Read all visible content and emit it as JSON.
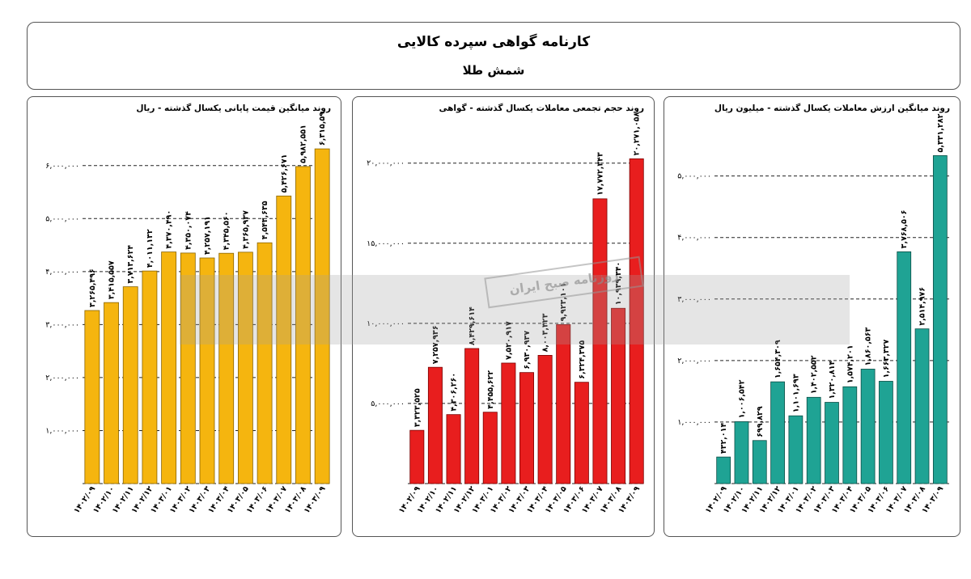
{
  "header": {
    "title": "کارنامه گواهی سپرده کالایی",
    "subtitle": "شمش طلا"
  },
  "watermark": "روزنامه صبح ایران",
  "chart_data": [
    {
      "type": "bar",
      "title": "روند میانگین قیمت پایانی یکسال گذشته - ریال",
      "categories": [
        "۱۴۰۲/۰۹",
        "۱۴۰۲/۱۰",
        "۱۴۰۲/۱۱",
        "۱۴۰۲/۱۲",
        "۱۴۰۳/۰۱",
        "۱۴۰۳/۰۲",
        "۱۴۰۳/۰۳",
        "۱۴۰۳/۰۴",
        "۱۴۰۳/۰۵",
        "۱۴۰۳/۰۶",
        "۱۴۰۳/۰۷",
        "۱۴۰۳/۰۸",
        "۱۴۰۳/۰۹"
      ],
      "values": [
        3265496,
        3415557,
        3713624,
        4011132,
        4370490,
        4350074,
        4257191,
        4345560,
        4365937,
        4543635,
        5426671,
        5982551,
        6315590
      ],
      "value_labels": [
        "۳,۲۶۵,۴۹۶",
        "۳,۴۱۵,۵۵۷",
        "۳,۷۱۳,۶۲۴",
        "۴,۰۱۱,۱۳۲",
        "۴,۳۷۰,۴۹۰",
        "۴,۳۵۰,۰۷۴",
        "۴,۲۵۷,۱۹۱",
        "۴,۳۴۵,۵۶۰",
        "۴,۳۶۵,۹۳۷",
        "۴,۵۴۳,۶۳۵",
        "۵,۴۲۶,۶۷۱",
        "۵,۹۸۲,۵۵۱",
        "۶,۳۱۵,۵۹۰"
      ],
      "ylim": [
        0,
        6500000
      ],
      "yticks": [
        1000000,
        2000000,
        3000000,
        4000000,
        5000000,
        6000000
      ],
      "ytick_labels": [
        "۱,۰۰۰,۰۰۰",
        "۲,۰۰۰,۰۰۰",
        "۳,۰۰۰,۰۰۰",
        "۴,۰۰۰,۰۰۰",
        "۵,۰۰۰,۰۰۰",
        "۶,۰۰۰,۰۰۰"
      ],
      "grid": true,
      "color": "#F5B50F",
      "stroke": "#8a6400"
    },
    {
      "type": "bar",
      "title": "روند حجم تجمعی معاملات یکسال گذشته - گواهی",
      "categories": [
        "۱۴۰۲/۰۹",
        "۱۴۰۲/۱۰",
        "۱۴۰۲/۱۱",
        "۱۴۰۲/۱۲",
        "۱۴۰۳/۰۱",
        "۱۴۰۳/۰۲",
        "۱۴۰۳/۰۳",
        "۱۴۰۳/۰۴",
        "۱۴۰۳/۰۵",
        "۱۴۰۳/۰۶",
        "۱۴۰۳/۰۷",
        "۱۴۰۳/۰۸",
        "۱۴۰۳/۰۹"
      ],
      "values": [
        3323525,
        7257936,
        4306260,
        8429614,
        4455622,
        7520917,
        6930937,
        8003323,
        9923101,
        6324375,
        17772343,
        10939340,
        20271058
      ],
      "value_labels": [
        "۳,۳۲۳,۵۲۵",
        "۷,۲۵۷,۹۳۶",
        "۴,۳۰۶,۲۶۰",
        "۸,۴۲۹,۶۱۴",
        "۴,۴۵۵,۶۲۲",
        "۷,۵۲۰,۹۱۷",
        "۶,۹۳۰,۹۳۷",
        "۸,۰۰۳,۳۲۳",
        "۹,۹۲۳,۱۰۱",
        "۶,۳۲۴,۳۷۵",
        "۱۷,۷۷۲,۳۴۳",
        "۱۰,۹۳۹,۳۴۰",
        "۲۰,۲۷۱,۰۵۸"
      ],
      "ylim": [
        0,
        21500000
      ],
      "yticks": [
        5000000,
        10000000,
        15000000,
        20000000
      ],
      "ytick_labels": [
        "۵,۰۰۰,۰۰۰",
        "۱۰,۰۰۰,۰۰۰",
        "۱۵,۰۰۰,۰۰۰",
        "۲۰,۰۰۰,۰۰۰"
      ],
      "grid": true,
      "color": "#E81E1E",
      "stroke": "#7a0000"
    },
    {
      "type": "bar",
      "title": "روند میانگین ارزش معاملات یکسال گذشته - میلیون ریال",
      "categories": [
        "۱۴۰۲/۰۹",
        "۱۴۰۲/۱۰",
        "۱۴۰۲/۱۱",
        "۱۴۰۲/۱۲",
        "۱۴۰۳/۰۱",
        "۱۴۰۳/۰۲",
        "۱۴۰۳/۰۳",
        "۱۴۰۳/۰۴",
        "۱۴۰۳/۰۵",
        "۱۴۰۳/۰۶",
        "۱۴۰۳/۰۷",
        "۱۴۰۳/۰۸",
        "۱۴۰۳/۰۹"
      ],
      "values": [
        432014,
        1006542,
        699829,
        1654309,
        1101693,
        1402552,
        1320814,
        1574201,
        1860563,
        1663327,
        3768506,
        2514976,
        5331282
      ],
      "value_labels": [
        "۴۳۲,۰۱۴",
        "۱,۰۰۶,۵۴۲",
        "۶۹۹,۸۲۹",
        "۱,۶۵۴,۳۰۹",
        "۱,۱۰۱,۶۹۳",
        "۱,۴۰۲,۵۵۲",
        "۱,۳۲۰,۸۱۴",
        "۱,۵۷۴,۲۰۱",
        "۱,۸۶۰,۵۶۳",
        "۱,۶۶۳,۳۲۷",
        "۳,۷۶۸,۵۰۶",
        "۲,۵۱۴,۹۷۶",
        "۵,۳۳۱,۲۸۲"
      ],
      "ylim": [
        0,
        5600000
      ],
      "yticks": [
        1000000,
        2000000,
        3000000,
        4000000,
        5000000
      ],
      "ytick_labels": [
        "۱,۰۰۰,۰۰۰",
        "۲,۰۰۰,۰۰۰",
        "۳,۰۰۰,۰۰۰",
        "۴,۰۰۰,۰۰۰",
        "۵,۰۰۰,۰۰۰"
      ],
      "grid": true,
      "color": "#1FA394",
      "stroke": "#0b4d45"
    }
  ]
}
